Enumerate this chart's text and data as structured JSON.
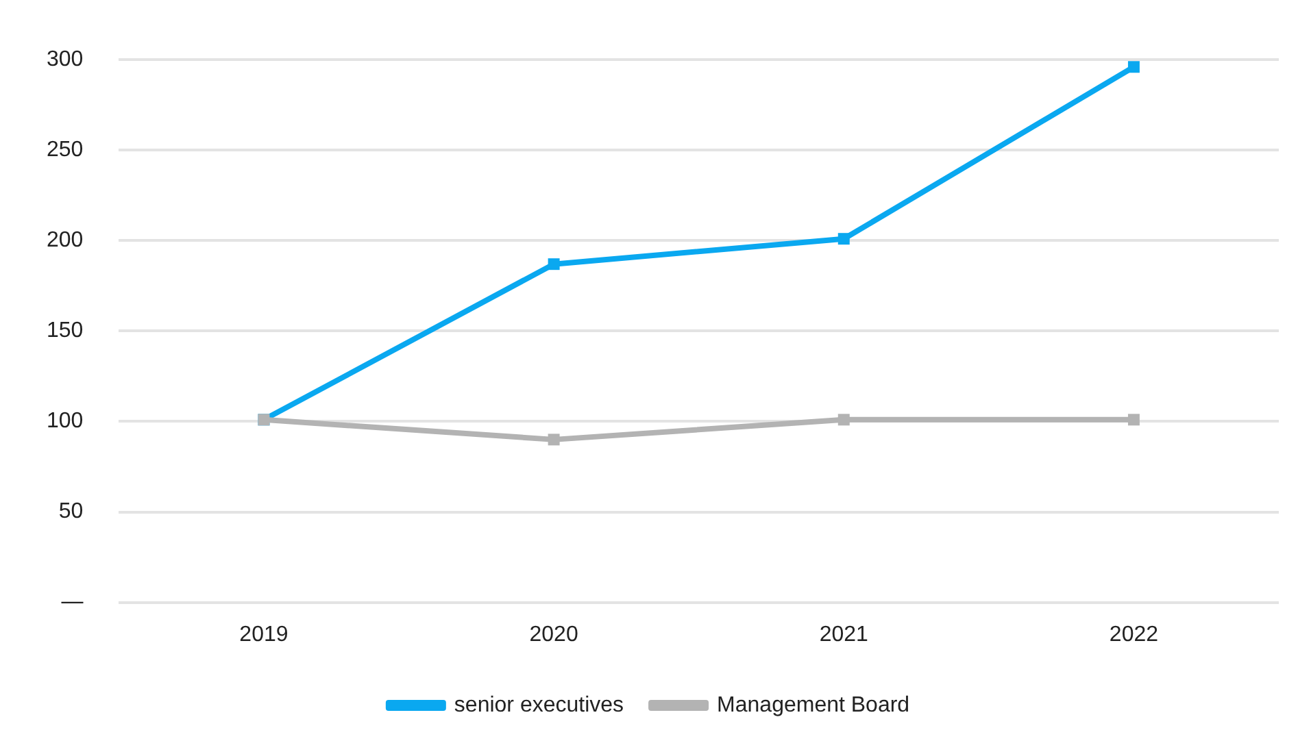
{
  "chart_data": {
    "type": "line",
    "categories": [
      "2019",
      "2020",
      "2021",
      "2022"
    ],
    "series": [
      {
        "name": "senior executives",
        "color": "#0aa8f0",
        "values": [
          101,
          187,
          201,
          296
        ]
      },
      {
        "name": "Management Board",
        "color": "#b3b3b3",
        "values": [
          101,
          90,
          101,
          101
        ]
      }
    ],
    "ylim": [
      0,
      300
    ],
    "yticks": [
      {
        "value": 0,
        "label": "—"
      },
      50,
      100,
      150,
      200,
      250,
      300
    ],
    "grid": "y",
    "legend": "bottom",
    "marker": "square",
    "line_style": "solid"
  }
}
